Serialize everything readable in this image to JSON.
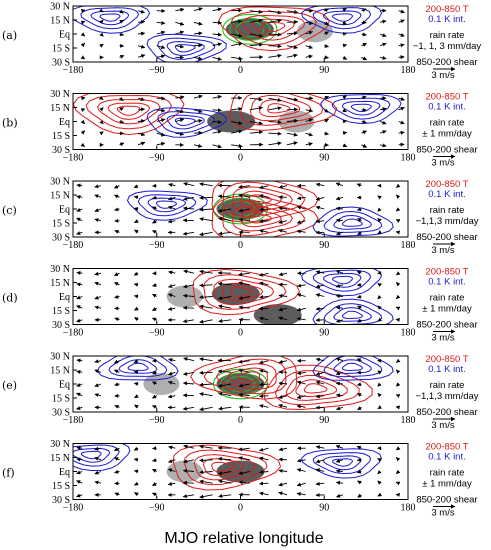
{
  "figure": {
    "xlabel": "MJO relative longitude"
  },
  "chart_data": {
    "type": "contour",
    "xlabel": "MJO relative longitude",
    "xlim": [
      -180,
      180
    ],
    "ylim": [
      -30,
      30
    ],
    "x_ticks": [
      "−180",
      "−90",
      "0",
      "90",
      "180"
    ],
    "x_tick_values": [
      -180,
      -90,
      0,
      90,
      180
    ],
    "y_ticks": [
      "30 N",
      "15 N",
      "Eq",
      "15 S",
      "30 S"
    ],
    "y_tick_values": [
      30,
      15,
      0,
      -15,
      -30
    ],
    "colors": {
      "warm": "#e01a1a",
      "cold": "#1a1ad8",
      "rain_green": "#22c022",
      "rain_dark": "#4a4a4a",
      "rain_light": "#a6a6a6",
      "vectors": "#000000"
    },
    "panels": [
      {
        "label": "(a)",
        "legend": {
          "temp": "200-850 T",
          "interval": "0.1 K int.",
          "rain_title": "rain rate",
          "rain_levels": "−1, 1, 3 mm/day",
          "shear": "850-200 shear",
          "scale": "3 m/s"
        },
        "rain_centers": [
          {
            "lon": 10,
            "lat": 5,
            "shade": "dark"
          },
          {
            "lon": 80,
            "lat": 3,
            "shade": "light"
          }
        ],
        "temp_warm_centers": [
          {
            "lon": 35,
            "lat": 8
          }
        ],
        "temp_cold_centers": [
          {
            "lon": -140,
            "lat": 18
          },
          {
            "lon": -60,
            "lat": -15
          },
          {
            "lon": 110,
            "lat": 18
          }
        ],
        "vector_flow": "westerly"
      },
      {
        "label": "(b)",
        "legend": {
          "temp": "200-850 T",
          "interval": "0.1 K int.",
          "rain_title": "rain rate",
          "rain_levels": "± 1 mm/day",
          "shear": "850-200 shear",
          "scale": "3 m/s"
        },
        "rain_centers": [
          {
            "lon": -10,
            "lat": 0,
            "shade": "dark"
          },
          {
            "lon": 60,
            "lat": 0,
            "shade": "light"
          }
        ],
        "temp_warm_centers": [
          {
            "lon": -120,
            "lat": 12
          },
          {
            "lon": 40,
            "lat": 14
          }
        ],
        "temp_cold_centers": [
          {
            "lon": -60,
            "lat": 0
          },
          {
            "lon": 130,
            "lat": 15
          }
        ],
        "vector_flow": "westerly"
      },
      {
        "label": "(c)",
        "legend": {
          "temp": "200-850 T",
          "interval": "0.1 K int.",
          "rain_title": "rain rate",
          "rain_levels": "−1,1,3 mm/day",
          "shear": "850-200 shear",
          "scale": "3 m/s"
        },
        "rain_centers": [
          {
            "lon": 0,
            "lat": 0,
            "shade": "dark"
          }
        ],
        "temp_warm_centers": [
          {
            "lon": 20,
            "lat": 10
          },
          {
            "lon": 20,
            "lat": -10
          }
        ],
        "temp_cold_centers": [
          {
            "lon": -80,
            "lat": 5
          },
          {
            "lon": 120,
            "lat": -15
          }
        ],
        "vector_flow": "easterly"
      },
      {
        "label": "(d)",
        "legend": {
          "temp": "200-850 T",
          "interval": "0.1 K int.",
          "rain_title": "rain rate",
          "rain_levels": "± 1 mm/day",
          "shear": "850-200 shear",
          "scale": "3 m/s"
        },
        "rain_centers": [
          {
            "lon": -5,
            "lat": 3,
            "shade": "dark"
          },
          {
            "lon": 40,
            "lat": -20,
            "shade": "dark"
          },
          {
            "lon": -60,
            "lat": 0,
            "shade": "light"
          }
        ],
        "temp_warm_centers": [
          {
            "lon": 0,
            "lat": 5
          }
        ],
        "temp_cold_centers": [
          {
            "lon": 110,
            "lat": 18
          },
          {
            "lon": 120,
            "lat": -20
          }
        ],
        "vector_flow": "easterly"
      },
      {
        "label": "(e)",
        "legend": {
          "temp": "200-850 T",
          "interval": "0.1 K int.",
          "rain_title": "rain rate",
          "rain_levels": "−1,1,3 mm/day",
          "shear": "850-200 shear",
          "scale": "3 m/s"
        },
        "rain_centers": [
          {
            "lon": 0,
            "lat": 0,
            "shade": "dark"
          },
          {
            "lon": -85,
            "lat": 0,
            "shade": "light"
          }
        ],
        "temp_warm_centers": [
          {
            "lon": 10,
            "lat": 8
          },
          {
            "lon": 80,
            "lat": -5
          }
        ],
        "temp_cold_centers": [
          {
            "lon": -110,
            "lat": 18
          },
          {
            "lon": 120,
            "lat": 18
          }
        ],
        "vector_flow": "easterly"
      },
      {
        "label": "(f)",
        "legend": {
          "temp": "200-850 T",
          "interval": "0.1 K int.",
          "rain_title": "rain rate",
          "rain_levels": "± 1 mm/day",
          "shear": "850-200 shear",
          "scale": "3 m/s"
        },
        "rain_centers": [
          {
            "lon": 0,
            "lat": 0,
            "shade": "dark"
          },
          {
            "lon": -60,
            "lat": 0,
            "shade": "light"
          }
        ],
        "temp_warm_centers": [
          {
            "lon": -20,
            "lat": 5
          }
        ],
        "temp_cold_centers": [
          {
            "lon": -160,
            "lat": 18
          },
          {
            "lon": 110,
            "lat": 10
          }
        ],
        "vector_flow": "easterly"
      }
    ]
  }
}
